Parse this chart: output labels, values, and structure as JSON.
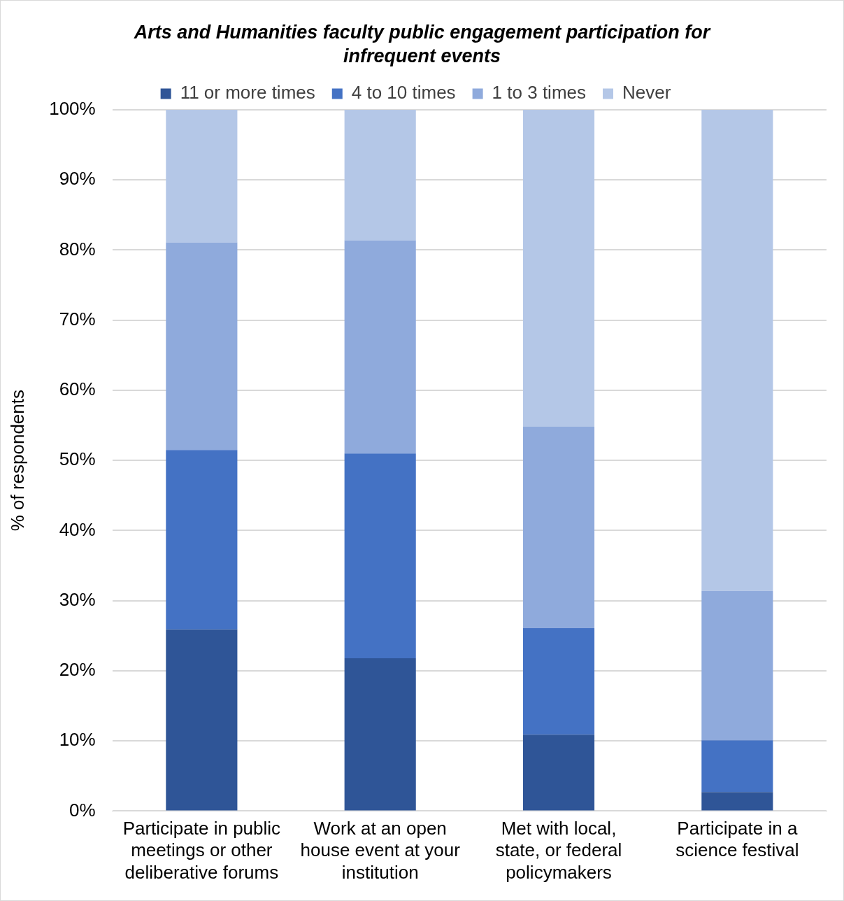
{
  "chart_data": {
    "type": "bar",
    "title": "Arts and Humanities faculty public engagement participation for infrequent events",
    "ylabel": "% of respondents",
    "categories": [
      "Participate in public meetings or other deliberative forums",
      "Work at an open house event at your institution",
      "Met with local, state, or federal policymakers",
      "Participate in a science festival"
    ],
    "series": [
      {
        "name": "11 or more times",
        "color": "#2f5597",
        "values": [
          25.9,
          21.8,
          10.9,
          2.7
        ]
      },
      {
        "name": "4 to 10 times",
        "color": "#4472c4",
        "values": [
          25.6,
          29.2,
          15.2,
          7.4
        ]
      },
      {
        "name": "1 to 3 times",
        "color": "#8faadc",
        "values": [
          29.6,
          30.4,
          28.7,
          21.3
        ]
      },
      {
        "name": "Never",
        "color": "#b4c7e7",
        "values": [
          18.9,
          18.6,
          45.2,
          68.6
        ]
      }
    ],
    "stacked": true,
    "ylim": [
      0,
      100
    ],
    "yticks": [
      {
        "value": 0,
        "label": "0%"
      },
      {
        "value": 10,
        "label": "10%"
      },
      {
        "value": 20,
        "label": "20%"
      },
      {
        "value": 30,
        "label": "30%"
      },
      {
        "value": 40,
        "label": "40%"
      },
      {
        "value": 50,
        "label": "50%"
      },
      {
        "value": 60,
        "label": "60%"
      },
      {
        "value": 70,
        "label": "70%"
      },
      {
        "value": 80,
        "label": "80%"
      },
      {
        "value": 90,
        "label": "90%"
      },
      {
        "value": 100,
        "label": "100%"
      }
    ],
    "grid": "y",
    "legend": "top"
  }
}
